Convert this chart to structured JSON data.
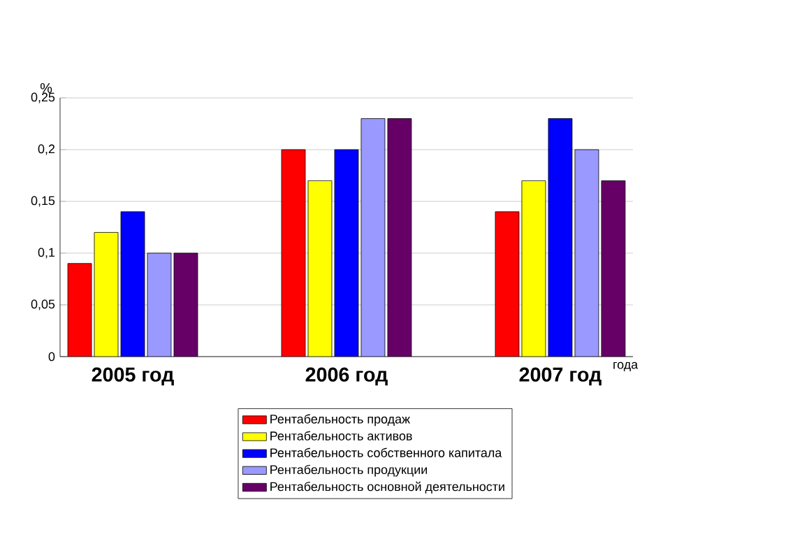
{
  "chart_data": {
    "type": "bar",
    "xlabel": "года",
    "ylabel": "%",
    "categories": [
      "2005 год",
      "2006 год",
      "2007 год"
    ],
    "series": [
      {
        "name": "Рентабельность продаж",
        "color": "#ff0000",
        "values": [
          0.09,
          0.2,
          0.14
        ]
      },
      {
        "name": "Рентабельность активов",
        "color": "#ffff00",
        "values": [
          0.12,
          0.17,
          0.17
        ]
      },
      {
        "name": "Рентабельность собственного капитала",
        "color": "#0000ff",
        "values": [
          0.14,
          0.2,
          0.23
        ]
      },
      {
        "name": "Рентабельность продукции",
        "color": "#9999ff",
        "values": [
          0.1,
          0.23,
          0.2
        ]
      },
      {
        "name": "Рентабельность основной деятельности",
        "color": "#660066",
        "values": [
          0.1,
          0.23,
          0.17
        ]
      }
    ],
    "ylim": [
      0,
      0.25
    ],
    "yticks": [
      0,
      {
        "value": 0.05,
        "label": "0,05"
      },
      {
        "value": 0.1,
        "label": "0,1"
      },
      {
        "value": 0.15,
        "label": "0,15"
      },
      {
        "value": 0.2,
        "label": "0,2"
      },
      {
        "value": 0.25,
        "label": "0,25"
      }
    ],
    "grid": "y",
    "legend": "bottom"
  }
}
